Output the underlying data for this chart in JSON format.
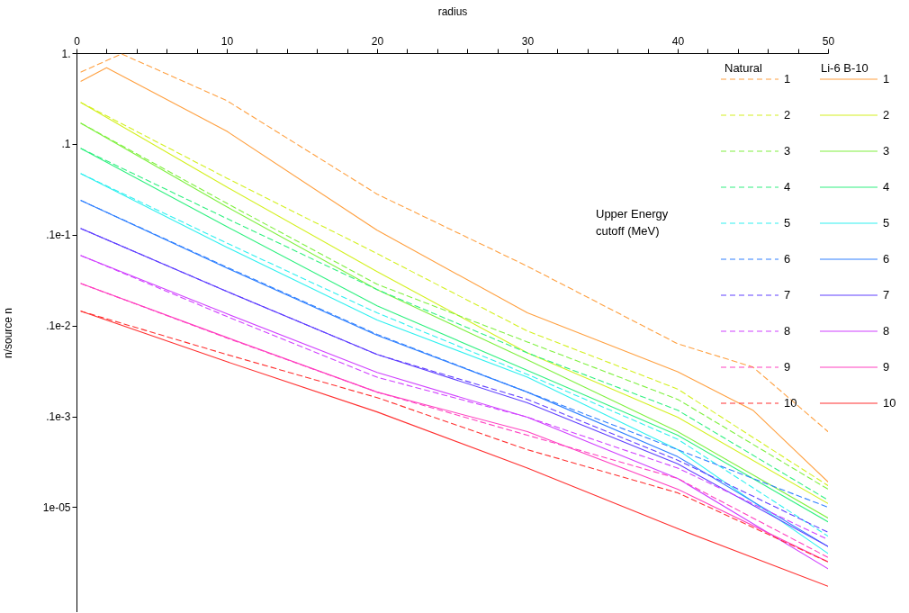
{
  "chart_data": {
    "type": "line",
    "xlabel": "radius",
    "ylabel": "n/source n",
    "legend_title": "Upper Energy cutoff (MeV)",
    "annotations": [
      "Natural",
      "Li-6 B-10"
    ],
    "xlim": [
      0,
      50
    ],
    "xticks": [
      0,
      {
        "value": 2,
        "label": null
      },
      {
        "value": 4,
        "label": null
      },
      {
        "value": 6,
        "label": null
      },
      {
        "value": 8,
        "label": null
      },
      10,
      {
        "value": 12,
        "label": null
      },
      {
        "value": 14,
        "label": null
      },
      {
        "value": 16,
        "label": null
      },
      {
        "value": 18,
        "label": null
      },
      20,
      {
        "value": 22,
        "label": null
      },
      {
        "value": 24,
        "label": null
      },
      {
        "value": 26,
        "label": null
      },
      {
        "value": 28,
        "label": null
      },
      30,
      {
        "value": 32,
        "label": null
      },
      {
        "value": 34,
        "label": null
      },
      {
        "value": 36,
        "label": null
      },
      {
        "value": 38,
        "label": null
      },
      40,
      {
        "value": 42,
        "label": null
      },
      {
        "value": 44,
        "label": null
      },
      {
        "value": 46,
        "label": null
      },
      {
        "value": 48,
        "label": null
      },
      50
    ],
    "ylim": [
      7e-07,
      1
    ],
    "yticks": [
      {
        "value": 1,
        "label": "1."
      },
      {
        "value": 0.1,
        "label": ".1"
      },
      {
        "value": 0.01,
        "label": ".1e-1"
      },
      {
        "value": 0.001,
        "label": ".1e-2"
      },
      {
        "value": 0.0001,
        "label": ".1e-3"
      },
      {
        "value": 1e-05,
        "label": "1e-05"
      }
    ],
    "log": true,
    "grid": false,
    "legend": "top right",
    "marker": "none",
    "series": [
      {
        "name": "1",
        "color": "#ffa040",
        "line_style": "dashed",
        "x": [
          0.3,
          3,
          10,
          20,
          30,
          40,
          45,
          50
        ],
        "values": [
          0.62,
          0.98,
          0.3,
          0.028,
          0.0045,
          0.00063,
          0.00035,
          6.8e-05
        ]
      },
      {
        "name": "1",
        "color": "#ffa040",
        "line_style": "solid",
        "x": [
          0.3,
          2,
          10,
          20,
          30,
          40,
          45,
          50
        ],
        "values": [
          0.49,
          0.69,
          0.138,
          0.0112,
          0.00138,
          0.00031,
          0.000117,
          1.9e-05
        ]
      },
      {
        "name": "2",
        "color": "#d4f020",
        "line_style": "dashed",
        "x": [
          0.3,
          10,
          20,
          30,
          40,
          50
        ],
        "values": [
          0.285,
          0.042,
          0.0062,
          0.00087,
          0.0002,
          1.73e-05
        ]
      },
      {
        "name": "2",
        "color": "#d4f020",
        "line_style": "solid",
        "x": [
          0.3,
          10,
          20,
          30,
          40,
          50
        ],
        "values": [
          0.285,
          0.0335,
          0.00393,
          0.0005,
          9.8e-05,
          1.1e-05
        ]
      },
      {
        "name": "3",
        "color": "#80f040",
        "line_style": "dashed",
        "x": [
          0.3,
          10,
          20,
          30,
          40,
          50
        ],
        "values": [
          0.169,
          0.0222,
          0.00285,
          0.00066,
          0.000154,
          1.58e-05
        ]
      },
      {
        "name": "3",
        "color": "#80f040",
        "line_style": "solid",
        "x": [
          0.3,
          10,
          20,
          30,
          40,
          50
        ],
        "values": [
          0.169,
          0.0203,
          0.00249,
          0.00042,
          6.8e-05,
          7.6e-06
        ]
      },
      {
        "name": "4",
        "color": "#30f080",
        "line_style": "dashed",
        "x": [
          0.3,
          10,
          20,
          30,
          40,
          50
        ],
        "values": [
          0.089,
          0.0151,
          0.00249,
          0.0005,
          0.000117,
          1.2e-05
        ]
      },
      {
        "name": "4",
        "color": "#30f080",
        "line_style": "solid",
        "x": [
          0.3,
          10,
          20,
          30,
          40,
          50
        ],
        "values": [
          0.089,
          0.0123,
          0.00165,
          0.00032,
          6.2e-05,
          6.9e-06
        ]
      },
      {
        "name": "5",
        "color": "#30f0f0",
        "line_style": "dashed",
        "x": [
          0.3,
          10,
          20,
          30,
          40,
          50
        ],
        "values": [
          0.047,
          0.0081,
          0.00138,
          0.00029,
          5.6e-05,
          4.8e-06
        ]
      },
      {
        "name": "5",
        "color": "#30f0f0",
        "line_style": "solid",
        "x": [
          0.3,
          10,
          20,
          30,
          40,
          50
        ],
        "values": [
          0.047,
          0.00727,
          0.00115,
          0.00027,
          4.3e-05,
          3.1e-06
        ]
      },
      {
        "name": "6",
        "color": "#3080ff",
        "line_style": "dashed",
        "x": [
          0.3,
          10,
          20,
          30,
          40,
          50
        ],
        "values": [
          0.0238,
          0.0044,
          0.0008,
          0.000185,
          4.3e-05,
          1e-05
        ]
      },
      {
        "name": "6",
        "color": "#3080ff",
        "line_style": "solid",
        "x": [
          0.3,
          10,
          20,
          30,
          40,
          50
        ],
        "values": [
          0.0238,
          0.0043,
          0.00078,
          0.000185,
          3.6e-05,
          3.7e-06
        ]
      },
      {
        "name": "7",
        "color": "#6040ff",
        "line_style": "dashed",
        "x": [
          0.3,
          10,
          20,
          30,
          40,
          50
        ],
        "values": [
          0.0117,
          0.00238,
          0.00048,
          0.000154,
          3.3e-05,
          5.3e-06
        ]
      },
      {
        "name": "7",
        "color": "#6040ff",
        "line_style": "solid",
        "x": [
          0.3,
          10,
          20,
          30,
          40,
          50
        ],
        "values": [
          0.0117,
          0.00238,
          0.00048,
          0.000141,
          3e-05,
          3.7e-06
        ]
      },
      {
        "name": "8",
        "color": "#d040ff",
        "line_style": "dashed",
        "x": [
          0.3,
          10,
          20,
          30,
          40,
          50
        ],
        "values": [
          0.0059,
          0.00126,
          0.00027,
          9.8e-05,
          2.7e-05,
          4.4e-06
        ]
      },
      {
        "name": "8",
        "color": "#d040ff",
        "line_style": "solid",
        "x": [
          0.3,
          10,
          20,
          30,
          40,
          50
        ],
        "values": [
          0.0059,
          0.00135,
          0.000305,
          9.8e-05,
          2.07e-05,
          2.1e-06
        ]
      },
      {
        "name": "9",
        "color": "#ff40c0",
        "line_style": "dashed",
        "x": [
          0.3,
          10,
          20,
          30,
          40,
          50
        ],
        "values": [
          0.0029,
          0.00073,
          0.000185,
          6.2e-05,
          2.07e-05,
          2.8e-06
        ]
      },
      {
        "name": "9",
        "color": "#ff40c0",
        "line_style": "solid",
        "x": [
          0.3,
          10,
          20,
          30,
          40,
          50
        ],
        "values": [
          0.0029,
          0.00074,
          0.000185,
          6.8e-05,
          1.58e-05,
          2.5e-06
        ]
      },
      {
        "name": "10",
        "color": "#ff3030",
        "line_style": "dashed",
        "x": [
          0.3,
          10,
          20,
          30,
          40,
          50
        ],
        "values": [
          0.00144,
          0.00048,
          0.000161,
          4.3e-05,
          1.44e-05,
          2.5e-06
        ]
      },
      {
        "name": "10",
        "color": "#ff3030",
        "line_style": "solid",
        "x": [
          0.3,
          10,
          20,
          30,
          40,
          50
        ],
        "values": [
          0.00144,
          0.0004,
          0.000112,
          2.7e-05,
          5.8e-06,
          1.35e-06
        ]
      }
    ]
  }
}
